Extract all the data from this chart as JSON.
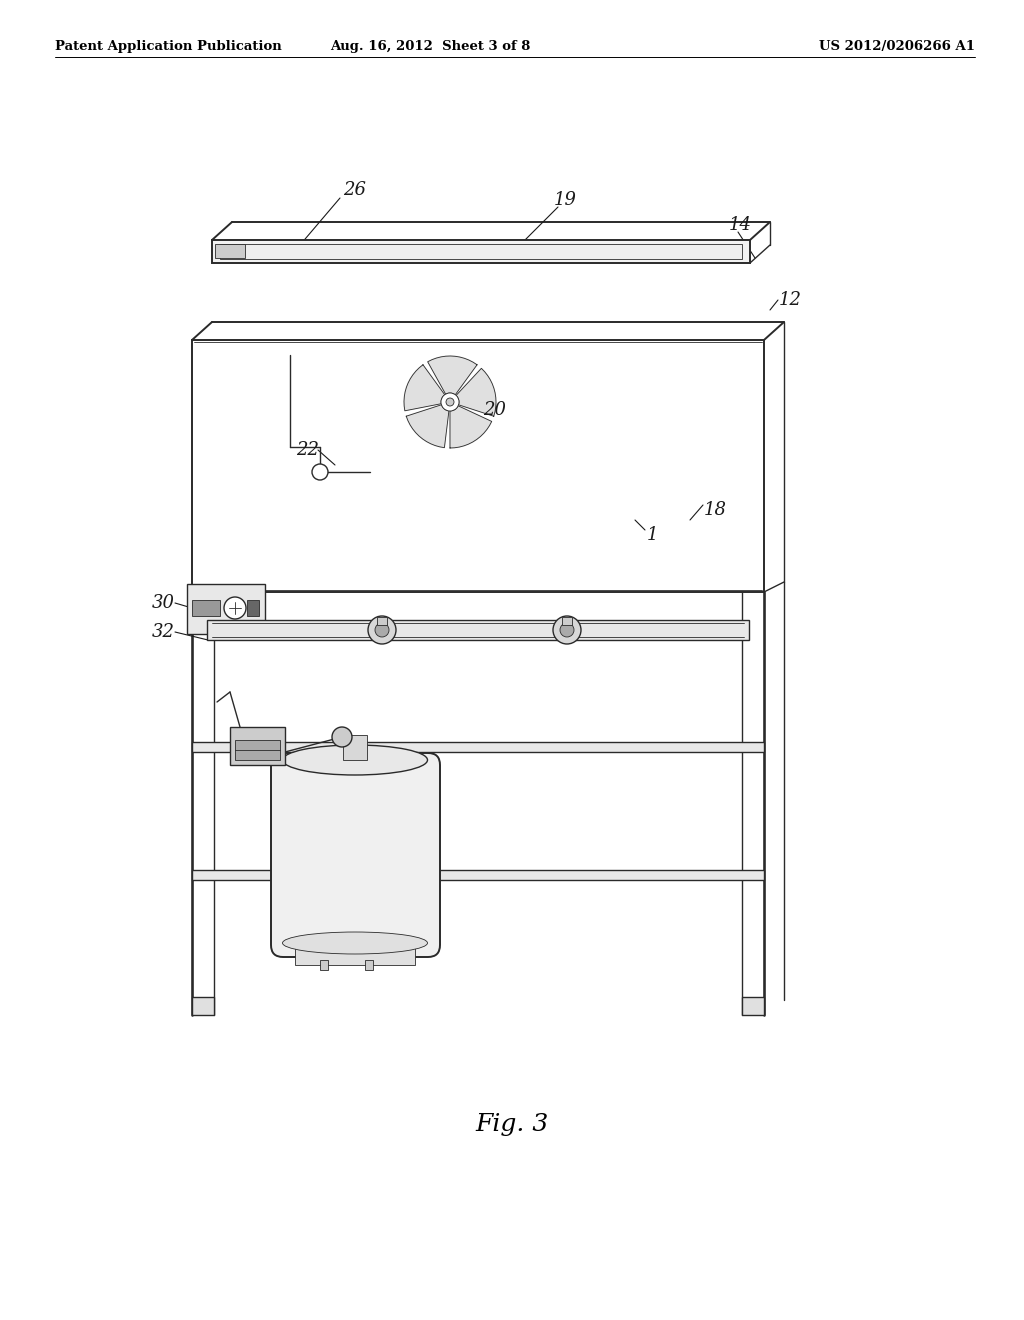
{
  "title_left": "Patent Application Publication",
  "title_center": "Aug. 16, 2012  Sheet 3 of 8",
  "title_right": "US 2012/0206266 A1",
  "fig_label": "Fig. 3",
  "bg_color": "#ffffff",
  "line_color": "#2a2a2a",
  "lw_main": 1.4,
  "lw_med": 1.0,
  "lw_thin": 0.6
}
